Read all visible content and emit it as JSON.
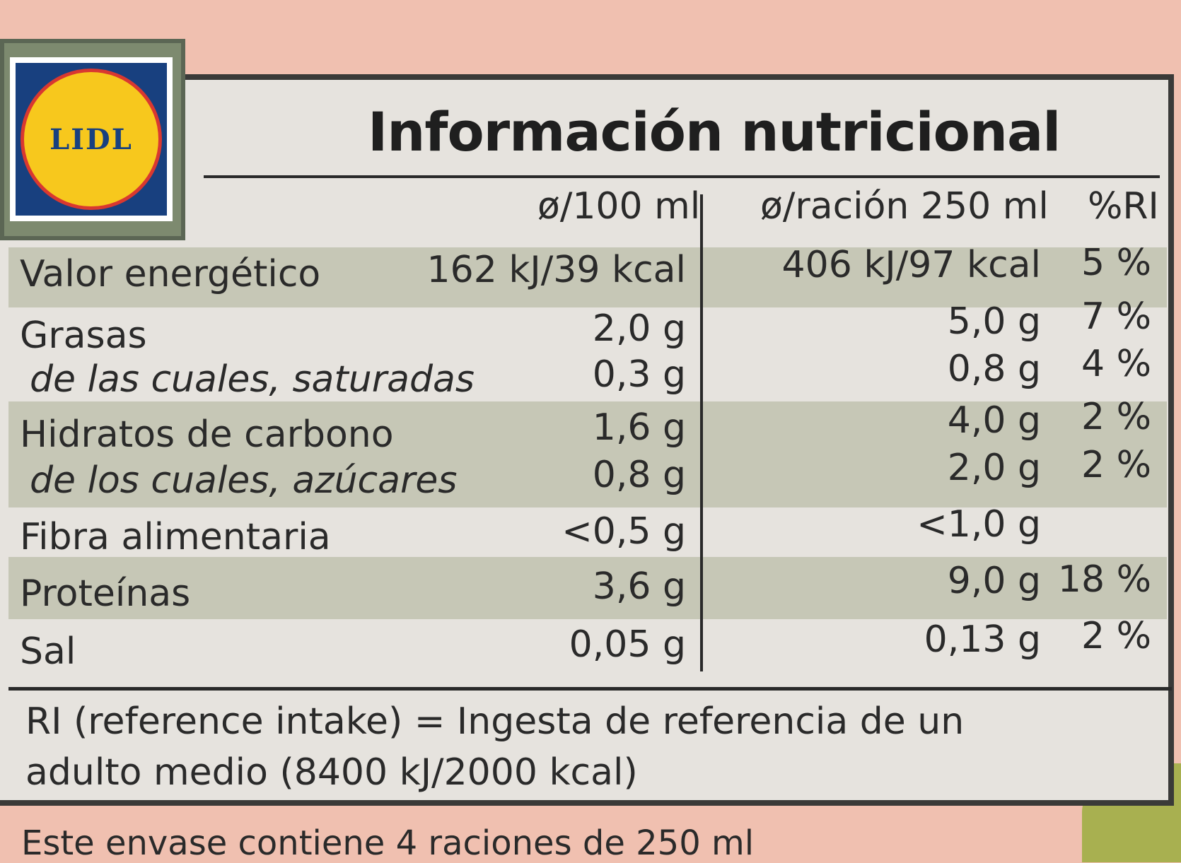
{
  "logo": {
    "text": "LIDL",
    "colors": {
      "blue": "#18407f",
      "yellow": "#f7c81d",
      "red": "#d93830"
    }
  },
  "title": "Información nutricional",
  "columns": {
    "per100": "ø/100 ml",
    "perServing": "ø/ración 250 ml",
    "ri": "%RI"
  },
  "rows": [
    {
      "label": "Valor energético",
      "per100": "162 kJ/39 kcal",
      "perServing": "406 kJ/97 kcal",
      "ri": "5 %"
    },
    {
      "label": "Grasas",
      "per100": "2,0 g",
      "perServing": "5,0 g",
      "ri": "7 %"
    },
    {
      "label": "de las cuales, saturadas",
      "per100": "0,3 g",
      "perServing": "0,8 g",
      "ri": "4 %"
    },
    {
      "label": "Hidratos de carbono",
      "per100": "1,6 g",
      "perServing": "4,0 g",
      "ri": "2 %"
    },
    {
      "label": "de los cuales, azúcares",
      "per100": "0,8 g",
      "perServing": "2,0 g",
      "ri": "2 %"
    },
    {
      "label": "Fibra alimentaria",
      "per100": "<0,5 g",
      "perServing": "<1,0 g",
      "ri": ""
    },
    {
      "label": "Proteínas",
      "per100": "3,6 g",
      "perServing": "9,0 g",
      "ri": "18 %"
    },
    {
      "label": "Sal",
      "per100": "0,05 g",
      "perServing": "0,13 g",
      "ri": "2 %"
    }
  ],
  "footnote": "RI (reference intake) = Ingesta de referencia de un adulto medio (8400 kJ/2000 kcal)",
  "below_text": "Este envase contiene 4 raciones de 250 ml"
}
